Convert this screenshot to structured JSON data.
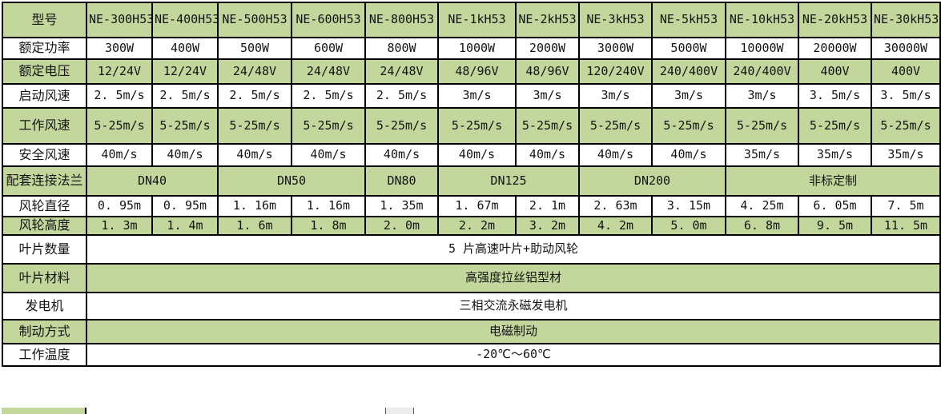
{
  "colors": {
    "row_green": "#c3d69b",
    "row_white": "#ffffff",
    "border": "#000000",
    "text": "#141414"
  },
  "table": {
    "header": {
      "label": "型号",
      "models": [
        "NE-300H53",
        "NE-400H53",
        "NE-500H53",
        "NE-600H53",
        "NE-800H53",
        "NE-1kH53",
        "NE-2kH53",
        "NE-3kH53",
        "NE-5kH53",
        "NE-10kH53",
        "NE-20kH53",
        "NE-30kH53"
      ]
    },
    "rows": [
      {
        "label": "额定功率",
        "values": [
          "300W",
          "400W",
          "500W",
          "600W",
          "800W",
          "1000W",
          "2000W",
          "3000W",
          "5000W",
          "10000W",
          "20000W",
          "30000W"
        ]
      },
      {
        "label": "额定电压",
        "values": [
          "12/24V",
          "12/24V",
          "24/48V",
          "24/48V",
          "24/48V",
          "48/96V",
          "48/96V",
          "120/240V",
          "240/400V",
          "240/400V",
          "400V",
          "400V"
        ]
      },
      {
        "label": "启动风速",
        "values": [
          "2. 5m/s",
          "2. 5m/s",
          "2. 5m/s",
          "2. 5m/s",
          "2. 5m/s",
          "3m/s",
          "3m/s",
          "3m/s",
          "3m/s",
          "3m/s",
          "3. 5m/s",
          "3. 5m/s"
        ]
      },
      {
        "label": "工作风速",
        "values": [
          "5-25m/s",
          "5-25m/s",
          "5-25m/s",
          "5-25m/s",
          "5-25m/s",
          "5-25m/s",
          "5-25m/s",
          "5-25m/s",
          "5-25m/s",
          "5-25m/s",
          "5-25m/s",
          "5-25m/s"
        ]
      },
      {
        "label": "安全风速",
        "values": [
          "40m/s",
          "40m/s",
          "40m/s",
          "40m/s",
          "40m/s",
          "40m/s",
          "40m/s",
          "40m/s",
          "40m/s",
          "35m/s",
          "35m/s",
          "35m/s"
        ]
      },
      {
        "label": "配套连接法兰",
        "spans": [
          {
            "text": "DN40",
            "cols": 2
          },
          {
            "text": "DN50",
            "cols": 2
          },
          {
            "text": "DN80",
            "cols": 1
          },
          {
            "text": "DN125",
            "cols": 2
          },
          {
            "text": "DN200",
            "cols": 2
          },
          {
            "text": "非标定制",
            "cols": 3
          }
        ]
      },
      {
        "label": "风轮直径",
        "values": [
          "0. 95m",
          "0. 95m",
          "1. 16m",
          "1. 16m",
          "1. 35m",
          "1. 67m",
          "2. 1m",
          "2. 63m",
          "3. 15m",
          "4. 25m",
          "6. 05m",
          "7. 5m"
        ]
      },
      {
        "label": "风轮高度",
        "values": [
          "1. 3m",
          "1. 4m",
          "1. 6m",
          "1. 8m",
          "2. 0m",
          "2. 2m",
          "3. 2m",
          "4. 2m",
          "5. 0m",
          "6. 8m",
          "9. 5m",
          "11. 5m"
        ]
      },
      {
        "label": "叶片数量",
        "merged": "5 片高速叶片+助动风轮"
      },
      {
        "label": "叶片材料",
        "merged": "高强度拉丝铝型材"
      },
      {
        "label": "发电机",
        "merged": "三相交流永磁发电机"
      },
      {
        "label": "制动方式",
        "merged": "电磁制动"
      },
      {
        "label": "工作温度",
        "merged": "-20℃～60℃"
      }
    ]
  }
}
